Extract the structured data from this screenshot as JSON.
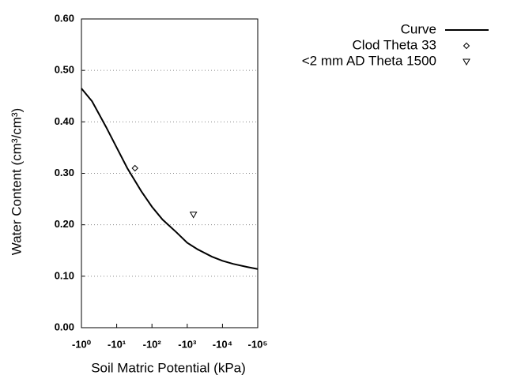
{
  "chart_data": {
    "type": "line",
    "x_label": "Soil Matric Potential (kPa)",
    "y_label": "Water Content (cm³/cm³)",
    "xscale": "log",
    "xlim": [
      -1,
      -100000
    ],
    "xticks": [
      {
        "value": -1,
        "label": "-10⁰"
      },
      {
        "value": -10,
        "label": "-10¹"
      },
      {
        "value": -100,
        "label": "-10²"
      },
      {
        "value": -1000,
        "label": "-10³"
      },
      {
        "value": -10000,
        "label": "-10⁴"
      },
      {
        "value": -100000,
        "label": "-10⁵"
      }
    ],
    "ylim": [
      0,
      0.6
    ],
    "yticks": [
      {
        "value": 0,
        "label": "0.00"
      },
      {
        "value": 0.1,
        "label": "0.10"
      },
      {
        "value": 0.2,
        "label": "0.20"
      },
      {
        "value": 0.3,
        "label": "0.30"
      },
      {
        "value": 0.4,
        "label": "0.40"
      },
      {
        "value": 0.5,
        "label": "0.50"
      },
      {
        "value": 0.6,
        "label": "0.60"
      }
    ],
    "grid": true,
    "legend": "outside-right",
    "series": [
      {
        "name": "Curve",
        "color": "#000000",
        "kind": "line",
        "x": [
          -1,
          -2,
          -5,
          -10,
          -20,
          -50,
          -100,
          -200,
          -500,
          -1000,
          -2000,
          -5000,
          -10000,
          -20000,
          -50000,
          -100000
        ],
        "values": [
          0.465,
          0.44,
          0.39,
          0.35,
          0.31,
          0.265,
          0.235,
          0.21,
          0.185,
          0.165,
          0.152,
          0.138,
          0.13,
          0.124,
          0.118,
          0.114
        ]
      },
      {
        "name": "Clod Theta 33",
        "color": "#000000",
        "kind": "diamond",
        "x": [
          -33
        ],
        "values": [
          0.31
        ]
      },
      {
        "name": "<2 mm AD Theta 1500",
        "color": "#000000",
        "kind": "triangle-down",
        "x": [
          -1500
        ],
        "values": [
          0.22
        ]
      }
    ]
  }
}
